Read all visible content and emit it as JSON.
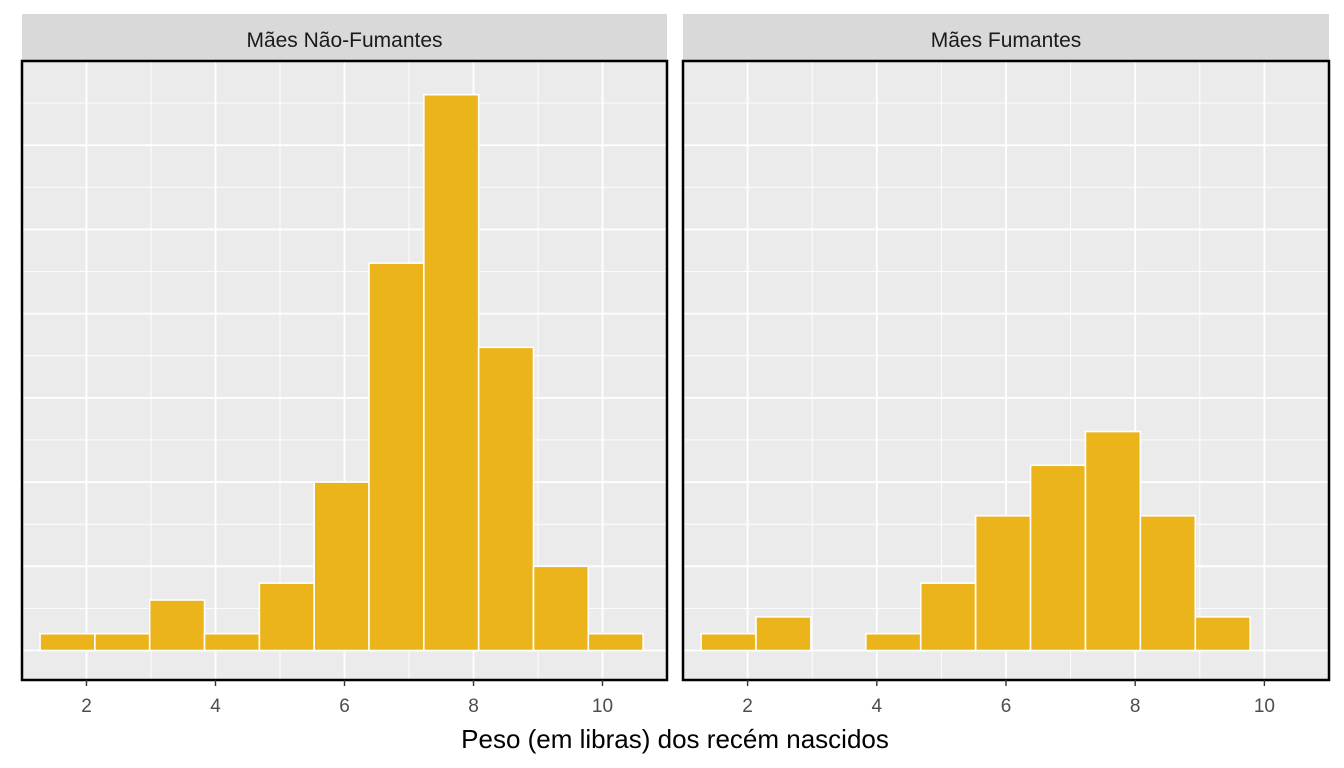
{
  "chart_data": {
    "type": "bar",
    "layout": "facet",
    "xlabel": "Peso (em libras) dos recém nascidos",
    "ylabel": "",
    "xlim": [
      1.0,
      11.0
    ],
    "xticks": [
      2,
      4,
      6,
      8,
      10
    ],
    "bin_width": 0.85,
    "ylim": [
      -0.35,
      7.0
    ],
    "bar_color": "#EBB41A",
    "panel_background": "#EBEBEB",
    "strip_background": "#D9D9D9",
    "grid": true,
    "legend": "none",
    "panels": [
      {
        "title": "Mães Não-Fumantes",
        "bin_starts": [
          1.28,
          2.13,
          2.98,
          3.83,
          4.68,
          5.53,
          6.38,
          7.23,
          8.08,
          8.93,
          9.78
        ],
        "counts": [
          0.2,
          0.2,
          0.6,
          0.2,
          0.8,
          2.0,
          4.6,
          6.6,
          3.6,
          1.0,
          0.2
        ]
      },
      {
        "title": "Mães Fumantes",
        "bin_starts": [
          1.28,
          2.13,
          2.98,
          3.83,
          4.68,
          5.53,
          6.38,
          7.23,
          8.08,
          8.93
        ],
        "counts": [
          0.2,
          0.4,
          0,
          0.2,
          0.8,
          1.6,
          2.2,
          2.6,
          1.6,
          0.4
        ]
      }
    ]
  }
}
